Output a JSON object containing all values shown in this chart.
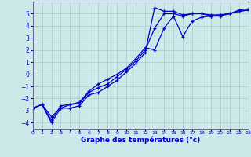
{
  "background_color": "#cce8e8",
  "line_color": "#0000cc",
  "grid_color": "#aacccc",
  "xlim": [
    0,
    23
  ],
  "ylim": [
    -4.5,
    6.0
  ],
  "xticks": [
    0,
    1,
    2,
    3,
    4,
    5,
    6,
    7,
    8,
    9,
    10,
    11,
    12,
    13,
    14,
    15,
    16,
    17,
    18,
    19,
    20,
    21,
    22,
    23
  ],
  "yticks": [
    -4,
    -3,
    -2,
    -1,
    0,
    1,
    2,
    3,
    4,
    5
  ],
  "xlabel": "Graphe des températures (°c)",
  "line1_x": [
    0,
    1,
    2,
    3,
    4,
    5,
    6,
    7,
    8,
    9,
    10,
    11,
    12,
    13,
    14,
    15,
    16,
    17,
    18,
    19,
    20,
    21,
    22,
    23
  ],
  "line1_y": [
    -2.8,
    -2.5,
    -3.5,
    -2.8,
    -2.8,
    -2.6,
    -1.7,
    -1.5,
    -1.0,
    -0.5,
    0.2,
    0.9,
    1.8,
    5.5,
    5.2,
    5.2,
    4.9,
    5.0,
    5.0,
    4.8,
    4.8,
    5.0,
    5.3,
    5.4
  ],
  "line2_x": [
    0,
    1,
    2,
    3,
    4,
    5,
    6,
    7,
    8,
    9,
    10,
    11,
    12,
    13,
    14,
    15,
    16,
    17,
    18,
    19,
    20,
    21,
    22,
    23
  ],
  "line2_y": [
    -2.8,
    -2.5,
    -3.8,
    -2.6,
    -2.5,
    -2.4,
    -1.5,
    -1.1,
    -0.8,
    -0.2,
    0.4,
    1.1,
    2.0,
    3.8,
    5.0,
    5.0,
    4.8,
    5.0,
    5.0,
    4.9,
    4.9,
    5.0,
    5.2,
    5.3
  ],
  "line3_x": [
    0,
    1,
    2,
    3,
    4,
    5,
    6,
    7,
    8,
    9,
    10,
    11,
    12,
    13,
    14,
    15,
    16,
    17,
    18,
    19,
    20,
    21,
    22,
    23
  ],
  "line3_y": [
    -2.8,
    -2.5,
    -4.0,
    -2.8,
    -2.5,
    -2.3,
    -1.4,
    -0.8,
    -0.4,
    0.0,
    0.5,
    1.3,
    2.2,
    2.0,
    3.8,
    4.8,
    3.1,
    4.4,
    4.7,
    4.8,
    4.9,
    5.0,
    5.2,
    5.3
  ]
}
